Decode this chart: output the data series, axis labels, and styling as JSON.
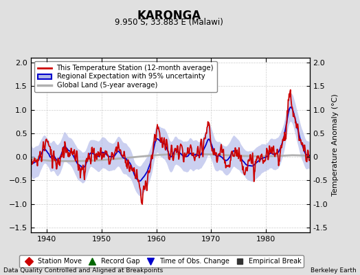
{
  "title": "KARONGA",
  "subtitle": "9.950 S, 33.883 E (Malawi)",
  "ylabel": "Temperature Anomaly (°C)",
  "xlabel_left": "Data Quality Controlled and Aligned at Breakpoints",
  "xlabel_right": "Berkeley Earth",
  "xlim": [
    1937,
    1988
  ],
  "ylim": [
    -1.6,
    2.1
  ],
  "yticks": [
    -1.5,
    -1.0,
    -0.5,
    0.0,
    0.5,
    1.0,
    1.5,
    2.0
  ],
  "xticks": [
    1940,
    1950,
    1960,
    1970,
    1980
  ],
  "bg_color": "#e0e0e0",
  "plot_bg_color": "#ffffff",
  "red_line_color": "#cc0000",
  "blue_line_color": "#0000cc",
  "blue_fill_color": "#b0b8e8",
  "gray_line_color": "#b0b0b0",
  "legend1_labels": [
    "This Temperature Station (12-month average)",
    "Regional Expectation with 95% uncertainty",
    "Global Land (5-year average)"
  ],
  "legend2_labels": [
    "Station Move",
    "Record Gap",
    "Time of Obs. Change",
    "Empirical Break"
  ],
  "legend2_colors": [
    "#cc0000",
    "#006600",
    "#0000cc",
    "#333333"
  ],
  "legend2_markers": [
    "D",
    "^",
    "v",
    "s"
  ]
}
